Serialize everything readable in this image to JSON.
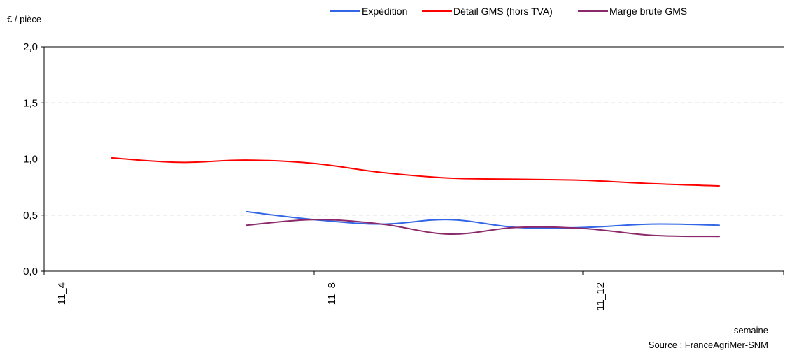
{
  "chart_data": {
    "type": "line",
    "ylabel": "€ / pièce",
    "xlabel": "semaine",
    "source": "Source : FranceAgriMer-SNM",
    "ylim": [
      0,
      2
    ],
    "y_ticks": [
      "0,0",
      "0,5",
      "1,0",
      "1,5",
      "2,0"
    ],
    "x_tick_labels": [
      "11_4",
      "11_8",
      "11_12"
    ],
    "grid": true,
    "legend_position": "top",
    "series": [
      {
        "name": "Expédition",
        "color": "#3366e6",
        "values": [
          null,
          null,
          null,
          0.53,
          0.46,
          0.42,
          0.46,
          0.39,
          0.39,
          0.42,
          0.41
        ]
      },
      {
        "name": "Détail GMS (hors TVA)",
        "color": "#ff0000",
        "values": [
          null,
          1.01,
          0.97,
          0.99,
          0.96,
          0.88,
          0.83,
          0.82,
          0.81,
          0.78,
          0.76
        ]
      },
      {
        "name": "Marge brute GMS",
        "color": "#8b2a6b",
        "values": [
          null,
          null,
          null,
          0.41,
          0.46,
          0.42,
          0.33,
          0.39,
          0.38,
          0.32,
          0.31
        ]
      }
    ]
  }
}
